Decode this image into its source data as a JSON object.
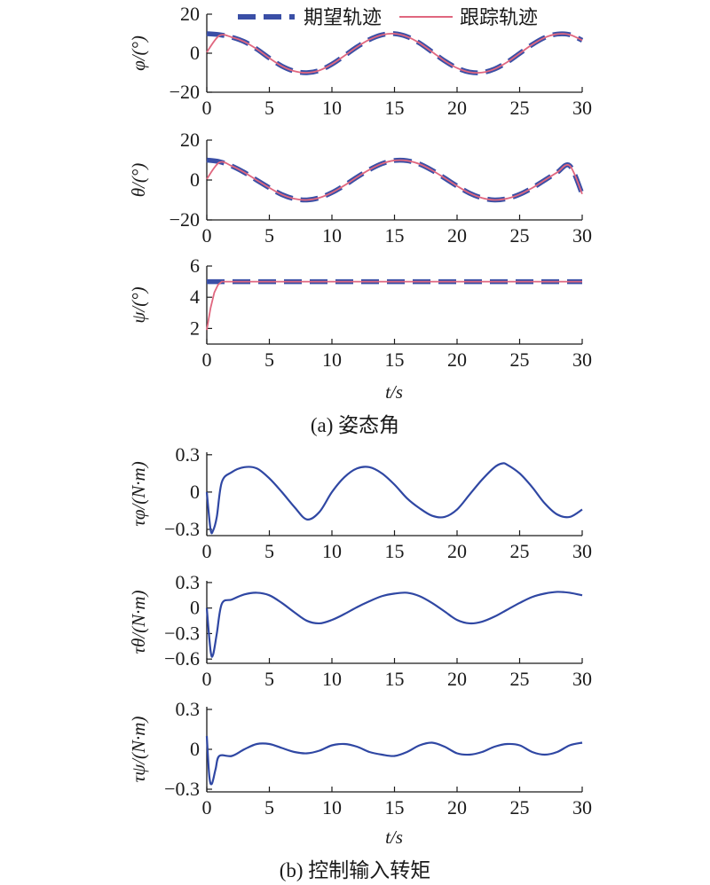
{
  "figure": {
    "caption_a": "(a) 姿态角",
    "caption_b": "(b) 控制输入转矩",
    "xlabel_a": "t/s",
    "xlabel_b": "t/s"
  },
  "legend": {
    "desired": "期望轨迹",
    "tracking": "跟踪轨迹"
  },
  "colors": {
    "desired": "#3a4fa6",
    "tracking": "#e0677f",
    "torque": "#2f47a3",
    "axis": "#1a1a1a"
  },
  "chart_data": [
    {
      "type": "line",
      "id": "phi",
      "ylabel": "φ/(°)",
      "xlim": [
        0,
        30
      ],
      "ylim": [
        -20,
        20
      ],
      "xticks": [
        0,
        5,
        10,
        15,
        20,
        25,
        30
      ],
      "yticks": [
        -20,
        0,
        20
      ],
      "x": [
        0,
        1,
        2,
        3,
        4,
        5,
        6,
        7,
        8,
        9,
        10,
        11,
        12,
        13,
        14,
        15,
        16,
        17,
        18,
        19,
        20,
        21,
        22,
        23,
        24,
        25,
        26,
        27,
        28,
        29,
        30
      ],
      "series": [
        {
          "name": "期望轨迹",
          "values": [
            10.0,
            9.5,
            8.2,
            5.9,
            2.1,
            -2.5,
            -6.6,
            -9.2,
            -10.0,
            -8.8,
            -5.6,
            -1.3,
            3.2,
            7.0,
            9.4,
            10.0,
            8.5,
            5.2,
            0.7,
            -3.9,
            -7.6,
            -9.7,
            -9.9,
            -8.1,
            -4.6,
            -0.1,
            4.4,
            8.0,
            9.8,
            9.5,
            6.6
          ]
        },
        {
          "name": "跟踪轨迹",
          "values": [
            0.5,
            9.0,
            8.2,
            5.9,
            2.1,
            -2.5,
            -6.6,
            -9.2,
            -10.0,
            -8.8,
            -5.6,
            -1.3,
            3.2,
            7.0,
            9.4,
            10.0,
            8.5,
            5.2,
            0.7,
            -3.9,
            -7.6,
            -9.7,
            -9.9,
            -8.1,
            -4.6,
            -0.1,
            4.4,
            8.0,
            9.8,
            9.5,
            6.6
          ]
        }
      ]
    },
    {
      "type": "line",
      "id": "theta",
      "ylabel": "θ/(°)",
      "xlim": [
        0,
        30
      ],
      "ylim": [
        -20,
        20
      ],
      "xticks": [
        0,
        5,
        10,
        15,
        20,
        25,
        30
      ],
      "yticks": [
        -20,
        0,
        20
      ],
      "x": [
        0,
        1,
        2,
        3,
        4,
        5,
        6,
        7,
        8,
        9,
        10,
        11,
        12,
        13,
        14,
        15,
        16,
        17,
        18,
        19,
        20,
        21,
        22,
        23,
        24,
        25,
        26,
        27,
        28,
        29,
        30
      ],
      "series": [
        {
          "name": "期望轨迹",
          "values": [
            10.0,
            9.2,
            7.0,
            3.8,
            -0.1,
            -3.9,
            -7.3,
            -9.4,
            -10.0,
            -8.9,
            -6.3,
            -2.7,
            1.4,
            5.2,
            8.2,
            9.8,
            9.7,
            8.0,
            4.9,
            1.0,
            -3.0,
            -6.6,
            -9.0,
            -10.0,
            -9.3,
            -7.2,
            -4.0,
            -0.1,
            3.8,
            7.2,
            -7.0
          ]
        },
        {
          "name": "跟踪轨迹",
          "values": [
            0.5,
            8.8,
            7.0,
            3.8,
            -0.1,
            -3.9,
            -7.3,
            -9.4,
            -10.0,
            -8.9,
            -6.3,
            -2.7,
            1.4,
            5.2,
            8.2,
            9.8,
            9.7,
            8.0,
            4.9,
            1.0,
            -3.0,
            -6.6,
            -9.0,
            -10.0,
            -9.3,
            -7.2,
            -4.0,
            -0.1,
            3.8,
            7.2,
            -7.0
          ]
        }
      ]
    },
    {
      "type": "line",
      "id": "psi",
      "ylabel": "ψ/(°)",
      "xlim": [
        0,
        30
      ],
      "ylim": [
        1,
        6
      ],
      "xticks": [
        0,
        5,
        10,
        15,
        20,
        25,
        30
      ],
      "yticks": [
        2,
        4,
        6
      ],
      "x": [
        0,
        0.3,
        0.6,
        0.9,
        1.2,
        30
      ],
      "series": [
        {
          "name": "期望轨迹",
          "values": [
            5,
            5,
            5,
            5,
            5,
            5
          ]
        },
        {
          "name": "跟踪轨迹",
          "values": [
            1.9,
            3.3,
            4.3,
            4.8,
            5.0,
            5.0
          ]
        }
      ]
    },
    {
      "type": "line",
      "id": "tau_phi",
      "ylabel": "τφ/(N·m)",
      "xlim": [
        0,
        30
      ],
      "ylim": [
        -0.35,
        0.32
      ],
      "xticks": [
        0,
        5,
        10,
        15,
        20,
        25,
        30
      ],
      "yticks": [
        -0.3,
        0,
        0.3
      ],
      "x": [
        0,
        0.3,
        0.5,
        0.8,
        1.2,
        2,
        3,
        4,
        5,
        6,
        7,
        8,
        9,
        10,
        11,
        12,
        13,
        14,
        15,
        16,
        17,
        18,
        19,
        20,
        21,
        22,
        23,
        23.6,
        24,
        25,
        26,
        27,
        28,
        29,
        30
      ],
      "series": [
        {
          "name": "τφ",
          "values": [
            0.0,
            -0.3,
            -0.31,
            -0.2,
            0.08,
            0.16,
            0.2,
            0.19,
            0.11,
            0.0,
            -0.12,
            -0.22,
            -0.16,
            0.0,
            0.12,
            0.19,
            0.2,
            0.15,
            0.06,
            -0.05,
            -0.13,
            -0.19,
            -0.2,
            -0.14,
            -0.02,
            0.1,
            0.2,
            0.23,
            0.22,
            0.15,
            0.04,
            -0.09,
            -0.18,
            -0.2,
            -0.14
          ]
        }
      ]
    },
    {
      "type": "line",
      "id": "tau_theta",
      "ylabel": "τθ/(N·m)",
      "xlim": [
        0,
        30
      ],
      "ylim": [
        -0.65,
        0.32
      ],
      "xticks": [
        0,
        5,
        10,
        15,
        20,
        25,
        30
      ],
      "yticks": [
        -0.6,
        -0.3,
        0,
        0.3
      ],
      "x": [
        0,
        0.3,
        0.5,
        0.8,
        1.2,
        2,
        3,
        4,
        5,
        6,
        7,
        8,
        9,
        10,
        11,
        12,
        13,
        14,
        15,
        16,
        17,
        18,
        19,
        20,
        21,
        22,
        23,
        24,
        25,
        26,
        27,
        28,
        29,
        30
      ],
      "series": [
        {
          "name": "τθ",
          "values": [
            0.0,
            -0.5,
            -0.55,
            -0.3,
            0.05,
            0.1,
            0.16,
            0.18,
            0.15,
            0.06,
            -0.05,
            -0.15,
            -0.18,
            -0.14,
            -0.07,
            0.01,
            0.08,
            0.14,
            0.17,
            0.18,
            0.14,
            0.06,
            -0.04,
            -0.14,
            -0.18,
            -0.16,
            -0.1,
            -0.02,
            0.06,
            0.13,
            0.17,
            0.19,
            0.18,
            0.15
          ]
        }
      ]
    },
    {
      "type": "line",
      "id": "tau_psi",
      "ylabel": "τψ/(N·m)",
      "xlim": [
        0,
        30
      ],
      "ylim": [
        -0.32,
        0.32
      ],
      "xticks": [
        0,
        5,
        10,
        15,
        20,
        25,
        30
      ],
      "yticks": [
        -0.3,
        0,
        0.3
      ],
      "x": [
        0,
        0.2,
        0.4,
        0.7,
        1.0,
        2,
        3,
        4,
        5,
        6,
        7,
        8,
        9,
        10,
        11,
        12,
        13,
        14,
        15,
        16,
        17,
        18,
        19,
        20,
        21,
        22,
        23,
        24,
        25,
        26,
        27,
        28,
        29,
        30
      ],
      "series": [
        {
          "name": "τψ",
          "values": [
            0.1,
            -0.2,
            -0.26,
            -0.15,
            -0.05,
            -0.05,
            0.0,
            0.04,
            0.04,
            0.01,
            -0.02,
            -0.03,
            -0.01,
            0.03,
            0.04,
            0.02,
            -0.02,
            -0.04,
            -0.05,
            -0.02,
            0.03,
            0.05,
            0.02,
            -0.03,
            -0.04,
            -0.02,
            0.02,
            0.04,
            0.03,
            -0.02,
            -0.04,
            -0.02,
            0.03,
            0.05
          ]
        }
      ]
    }
  ]
}
